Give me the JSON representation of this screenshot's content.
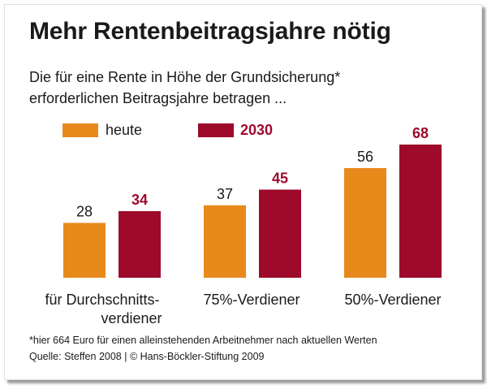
{
  "chart_data": {
    "type": "bar",
    "title": "Mehr Rentenbeitragsjahre nötig",
    "subtitle_line1": "Die für eine Rente in Höhe der Grundsicherung*",
    "subtitle_line2": "erforderlichen Beitragsjahre betragen ...",
    "categories": [
      {
        "line1": "für Durchschnitts-",
        "line2": "verdiener"
      },
      {
        "line1": "75%-Verdiener",
        "line2": ""
      },
      {
        "line1": "50%-Verdiener",
        "line2": ""
      }
    ],
    "series": [
      {
        "name": "heute",
        "color": "#e8891c",
        "values": [
          28,
          37,
          56
        ]
      },
      {
        "name": "2030",
        "color": "#9e0a2b",
        "values": [
          34,
          45,
          68
        ]
      }
    ],
    "ylim": [
      0,
      100
    ],
    "grid": false,
    "legend_position": "top-left",
    "footnote": "*hier 664 Euro für einen alleinstehenden Arbeitnehmer nach aktuellen Werten",
    "source": "Quelle: Steffen 2008 | © Hans-Böckler-Stiftung 2009"
  }
}
